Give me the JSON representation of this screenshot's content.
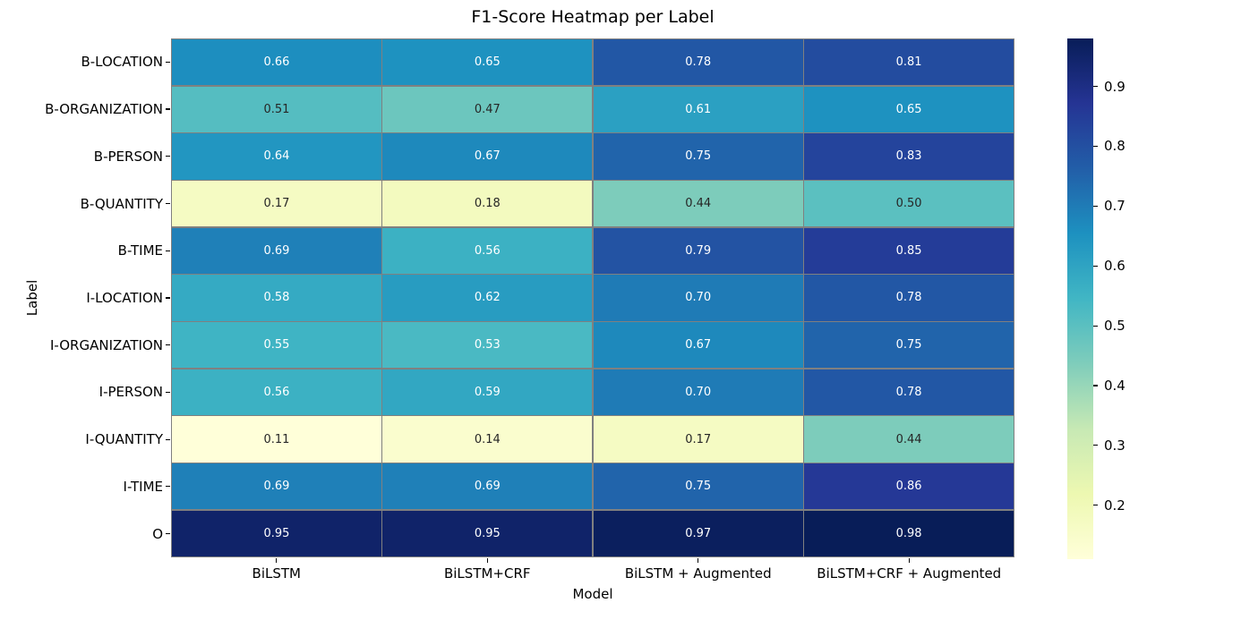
{
  "chart_data": {
    "type": "heatmap",
    "title": "F1-Score Heatmap per Label",
    "xlabel": "Model",
    "ylabel": "Label",
    "x_categories": [
      "BiLSTM",
      "BiLSTM+CRF",
      "BiLSTM + Augmented",
      "BiLSTM+CRF + Augmented"
    ],
    "y_categories": [
      "B-LOCATION",
      "B-ORGANIZATION",
      "B-PERSON",
      "B-QUANTITY",
      "B-TIME",
      "I-LOCATION",
      "I-ORGANIZATION",
      "I-PERSON",
      "I-QUANTITY",
      "I-TIME",
      "O"
    ],
    "values": [
      [
        0.66,
        0.65,
        0.78,
        0.81
      ],
      [
        0.51,
        0.47,
        0.61,
        0.65
      ],
      [
        0.64,
        0.67,
        0.75,
        0.83
      ],
      [
        0.17,
        0.18,
        0.44,
        0.5
      ],
      [
        0.69,
        0.56,
        0.79,
        0.85
      ],
      [
        0.58,
        0.62,
        0.7,
        0.78
      ],
      [
        0.55,
        0.53,
        0.67,
        0.75
      ],
      [
        0.56,
        0.59,
        0.7,
        0.78
      ],
      [
        0.11,
        0.14,
        0.17,
        0.44
      ],
      [
        0.69,
        0.69,
        0.75,
        0.86
      ],
      [
        0.95,
        0.95,
        0.97,
        0.98
      ]
    ],
    "value_decimals": 2,
    "vmin": 0.11,
    "vmax": 0.98,
    "colormap": "YlGnBu",
    "colormap_anchors": [
      "#ffffd9",
      "#edf8b1",
      "#c7e9b4",
      "#7fcdbb",
      "#41b6c4",
      "#1d91c0",
      "#225ea8",
      "#253494",
      "#081d58"
    ],
    "colorbar_ticks": [
      0.9,
      0.8,
      0.7,
      0.6,
      0.5,
      0.4,
      0.3,
      0.2
    ],
    "colorbar_tick_decimals": 1,
    "legend_position": "right",
    "grid_on": true,
    "grid_line_color": "#808080",
    "annotation_color_on_dark": "#ffffff",
    "annotation_color_on_light": "#262626",
    "background_color": "#ffffff",
    "text_color": "#000000"
  }
}
